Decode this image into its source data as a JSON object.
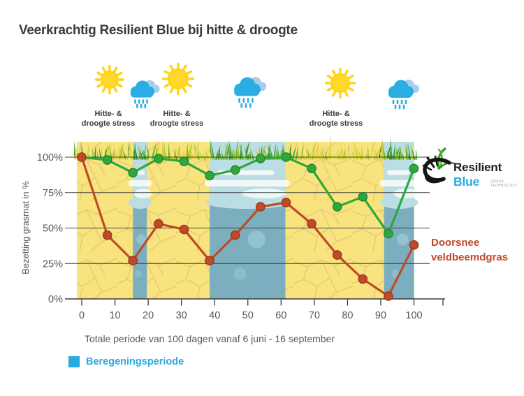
{
  "title": "Veerkrachtig Resilient Blue bij hitte & droogte",
  "weather": {
    "stress_label_lines": [
      "Hitte- &",
      "droogte stress"
    ],
    "icons": [
      {
        "name": "sun-icon"
      },
      {
        "name": "rain-cloud-icon"
      },
      {
        "name": "sun-icon"
      },
      {
        "name": "rain-cloud-icon"
      },
      {
        "name": "sun-icon"
      },
      {
        "name": "rain-cloud-icon"
      }
    ]
  },
  "logo": {
    "brand_line1": "Resilient",
    "brand_line2": "Blue",
    "tagline_lines": "GRASS\nTECHNOLOGY"
  },
  "series_labels": {
    "green": "Resilient Blue",
    "red": "Doorsnee veldbeemdgras"
  },
  "legend": {
    "label": "Beregeningsperiode",
    "color": "#29ABE2"
  },
  "axis": {
    "y_title": "Bezetting grasmat in %",
    "caption": "Totale periode van 100 dagen vanaf 6 juni - 16 september"
  },
  "chart_data": {
    "type": "line",
    "title": "Veerkrachtig Resilient Blue bij hitte & droogte",
    "xlabel": "Totale periode van 100 dagen vanaf 6 juni - 16 september",
    "ylabel": "Bezetting grasmat in %",
    "xlim": [
      0,
      100
    ],
    "ylim": [
      0,
      100
    ],
    "x_ticks": [
      0,
      10,
      20,
      30,
      40,
      50,
      60,
      70,
      80,
      90,
      100
    ],
    "y_ticks": [
      "0%",
      "25%",
      "50%",
      "75%",
      "100%"
    ],
    "grid": true,
    "x_days": [
      0,
      7.7,
      15.4,
      23.1,
      30.8,
      38.5,
      46.2,
      53.8,
      61.5,
      69.2,
      76.9,
      84.6,
      92.3,
      100
    ],
    "series": [
      {
        "name": "Resilient Blue",
        "color": "#2FA73B",
        "values": [
          100,
          98,
          89,
          99,
          97,
          87,
          91,
          99,
          100,
          92,
          65,
          72,
          46,
          92
        ]
      },
      {
        "name": "Doorsnee veldbeemdgras",
        "color": "#BE4A28",
        "values": [
          100,
          45,
          27,
          53,
          49,
          27,
          45,
          65,
          68,
          53,
          31,
          14,
          2,
          38
        ]
      }
    ],
    "irrigation_periods_days": [
      [
        15.4,
        19.6
      ],
      [
        38.5,
        61.3
      ],
      [
        91,
        100
      ]
    ],
    "background": {
      "dry_color": "#F9E37F",
      "crack_color": "#E2C974",
      "wet_color": "#7BAFBF",
      "wet_light_color": "#BBDDE4",
      "streak_color": "#F3FAF8"
    },
    "legend_entries": [
      {
        "label": "Beregeningsperiode",
        "color": "#29ABE2"
      }
    ]
  }
}
